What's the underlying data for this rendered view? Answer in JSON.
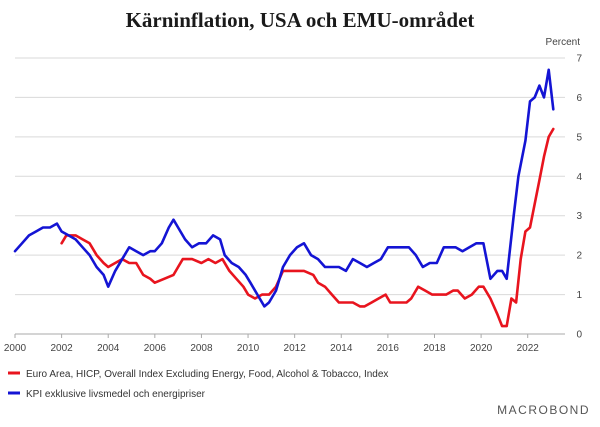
{
  "chart_data": {
    "type": "line",
    "title": "Kärninflation, USA och EMU-området",
    "ylabel": "Percent",
    "xlabel": "",
    "xlim": [
      2000,
      2023.6
    ],
    "ylim": [
      0,
      7
    ],
    "x_ticks": [
      2000,
      2002,
      2004,
      2006,
      2008,
      2010,
      2012,
      2014,
      2016,
      2018,
      2020,
      2022
    ],
    "x_tick_labels": [
      "2000",
      "2002",
      "2004",
      "2006",
      "2008",
      "2010",
      "2012",
      "2014",
      "2016",
      "2018",
      "2020",
      "2022"
    ],
    "y_ticks": [
      0,
      1,
      2,
      3,
      4,
      5,
      6,
      7
    ],
    "y_tick_labels": [
      "0",
      "1",
      "2",
      "3",
      "4",
      "5",
      "6",
      "7"
    ],
    "grid": true,
    "legend_position": "bottom-left",
    "series": [
      {
        "name": "Euro Area, HICP, Overall Index Excluding Energy, Food, Alcohol & Tobacco, Index",
        "color": "#e8141e",
        "points": [
          [
            2002.0,
            2.3
          ],
          [
            2002.2,
            2.5
          ],
          [
            2002.6,
            2.5
          ],
          [
            2002.9,
            2.4
          ],
          [
            2003.2,
            2.3
          ],
          [
            2003.5,
            2.0
          ],
          [
            2003.8,
            1.8
          ],
          [
            2004.0,
            1.7
          ],
          [
            2004.3,
            1.8
          ],
          [
            2004.6,
            1.9
          ],
          [
            2004.9,
            1.8
          ],
          [
            2005.2,
            1.8
          ],
          [
            2005.5,
            1.5
          ],
          [
            2005.8,
            1.4
          ],
          [
            2006.0,
            1.3
          ],
          [
            2006.4,
            1.4
          ],
          [
            2006.8,
            1.5
          ],
          [
            2007.0,
            1.7
          ],
          [
            2007.2,
            1.9
          ],
          [
            2007.6,
            1.9
          ],
          [
            2008.0,
            1.8
          ],
          [
            2008.3,
            1.9
          ],
          [
            2008.6,
            1.8
          ],
          [
            2008.9,
            1.9
          ],
          [
            2009.2,
            1.6
          ],
          [
            2009.5,
            1.4
          ],
          [
            2009.8,
            1.2
          ],
          [
            2010.0,
            1.0
          ],
          [
            2010.3,
            0.9
          ],
          [
            2010.6,
            1.0
          ],
          [
            2010.9,
            1.0
          ],
          [
            2011.2,
            1.2
          ],
          [
            2011.5,
            1.6
          ],
          [
            2011.8,
            1.6
          ],
          [
            2012.0,
            1.6
          ],
          [
            2012.4,
            1.6
          ],
          [
            2012.8,
            1.5
          ],
          [
            2013.0,
            1.3
          ],
          [
            2013.3,
            1.2
          ],
          [
            2013.6,
            1.0
          ],
          [
            2013.9,
            0.8
          ],
          [
            2014.2,
            0.8
          ],
          [
            2014.5,
            0.8
          ],
          [
            2014.8,
            0.7
          ],
          [
            2015.0,
            0.7
          ],
          [
            2015.3,
            0.8
          ],
          [
            2015.6,
            0.9
          ],
          [
            2015.9,
            1.0
          ],
          [
            2016.1,
            0.8
          ],
          [
            2016.4,
            0.8
          ],
          [
            2016.8,
            0.8
          ],
          [
            2017.0,
            0.9
          ],
          [
            2017.3,
            1.2
          ],
          [
            2017.6,
            1.1
          ],
          [
            2017.9,
            1.0
          ],
          [
            2018.2,
            1.0
          ],
          [
            2018.5,
            1.0
          ],
          [
            2018.8,
            1.1
          ],
          [
            2019.0,
            1.1
          ],
          [
            2019.3,
            0.9
          ],
          [
            2019.6,
            1.0
          ],
          [
            2019.9,
            1.2
          ],
          [
            2020.1,
            1.2
          ],
          [
            2020.4,
            0.9
          ],
          [
            2020.7,
            0.5
          ],
          [
            2020.9,
            0.2
          ],
          [
            2021.1,
            0.2
          ],
          [
            2021.3,
            0.9
          ],
          [
            2021.5,
            0.8
          ],
          [
            2021.7,
            1.9
          ],
          [
            2021.9,
            2.6
          ],
          [
            2022.1,
            2.7
          ],
          [
            2022.3,
            3.3
          ],
          [
            2022.5,
            3.9
          ],
          [
            2022.7,
            4.5
          ],
          [
            2022.9,
            5.0
          ],
          [
            2023.1,
            5.2
          ]
        ]
      },
      {
        "name": "KPI exklusive livsmedel och energipriser",
        "color": "#1414d4",
        "points": [
          [
            2000.0,
            2.1
          ],
          [
            2000.3,
            2.3
          ],
          [
            2000.6,
            2.5
          ],
          [
            2000.9,
            2.6
          ],
          [
            2001.2,
            2.7
          ],
          [
            2001.5,
            2.7
          ],
          [
            2001.8,
            2.8
          ],
          [
            2002.0,
            2.6
          ],
          [
            2002.3,
            2.5
          ],
          [
            2002.6,
            2.4
          ],
          [
            2002.9,
            2.2
          ],
          [
            2003.2,
            2.0
          ],
          [
            2003.5,
            1.7
          ],
          [
            2003.8,
            1.5
          ],
          [
            2004.0,
            1.2
          ],
          [
            2004.3,
            1.6
          ],
          [
            2004.6,
            1.9
          ],
          [
            2004.9,
            2.2
          ],
          [
            2005.2,
            2.1
          ],
          [
            2005.5,
            2.0
          ],
          [
            2005.8,
            2.1
          ],
          [
            2006.0,
            2.1
          ],
          [
            2006.3,
            2.3
          ],
          [
            2006.6,
            2.7
          ],
          [
            2006.8,
            2.9
          ],
          [
            2007.0,
            2.7
          ],
          [
            2007.3,
            2.4
          ],
          [
            2007.6,
            2.2
          ],
          [
            2007.9,
            2.3
          ],
          [
            2008.2,
            2.3
          ],
          [
            2008.5,
            2.5
          ],
          [
            2008.8,
            2.4
          ],
          [
            2009.0,
            2.0
          ],
          [
            2009.3,
            1.8
          ],
          [
            2009.6,
            1.7
          ],
          [
            2009.9,
            1.5
          ],
          [
            2010.1,
            1.3
          ],
          [
            2010.4,
            1.0
          ],
          [
            2010.7,
            0.7
          ],
          [
            2010.9,
            0.8
          ],
          [
            2011.2,
            1.1
          ],
          [
            2011.5,
            1.7
          ],
          [
            2011.8,
            2.0
          ],
          [
            2012.1,
            2.2
          ],
          [
            2012.4,
            2.3
          ],
          [
            2012.7,
            2.0
          ],
          [
            2013.0,
            1.9
          ],
          [
            2013.3,
            1.7
          ],
          [
            2013.6,
            1.7
          ],
          [
            2013.9,
            1.7
          ],
          [
            2014.2,
            1.6
          ],
          [
            2014.5,
            1.9
          ],
          [
            2014.8,
            1.8
          ],
          [
            2015.1,
            1.7
          ],
          [
            2015.4,
            1.8
          ],
          [
            2015.7,
            1.9
          ],
          [
            2016.0,
            2.2
          ],
          [
            2016.3,
            2.2
          ],
          [
            2016.6,
            2.2
          ],
          [
            2016.9,
            2.2
          ],
          [
            2017.2,
            2.0
          ],
          [
            2017.5,
            1.7
          ],
          [
            2017.8,
            1.8
          ],
          [
            2018.1,
            1.8
          ],
          [
            2018.4,
            2.2
          ],
          [
            2018.7,
            2.2
          ],
          [
            2018.9,
            2.2
          ],
          [
            2019.2,
            2.1
          ],
          [
            2019.5,
            2.2
          ],
          [
            2019.8,
            2.3
          ],
          [
            2020.1,
            2.3
          ],
          [
            2020.4,
            1.4
          ],
          [
            2020.7,
            1.6
          ],
          [
            2020.9,
            1.6
          ],
          [
            2021.1,
            1.4
          ],
          [
            2021.4,
            3.0
          ],
          [
            2021.6,
            4.0
          ],
          [
            2021.9,
            4.9
          ],
          [
            2022.1,
            5.9
          ],
          [
            2022.3,
            6.0
          ],
          [
            2022.5,
            6.3
          ],
          [
            2022.7,
            6.0
          ],
          [
            2022.9,
            6.7
          ],
          [
            2023.1,
            5.7
          ]
        ]
      }
    ]
  },
  "branding": {
    "logo_text": "MACROBOND",
    "accent_color": "#777777"
  }
}
